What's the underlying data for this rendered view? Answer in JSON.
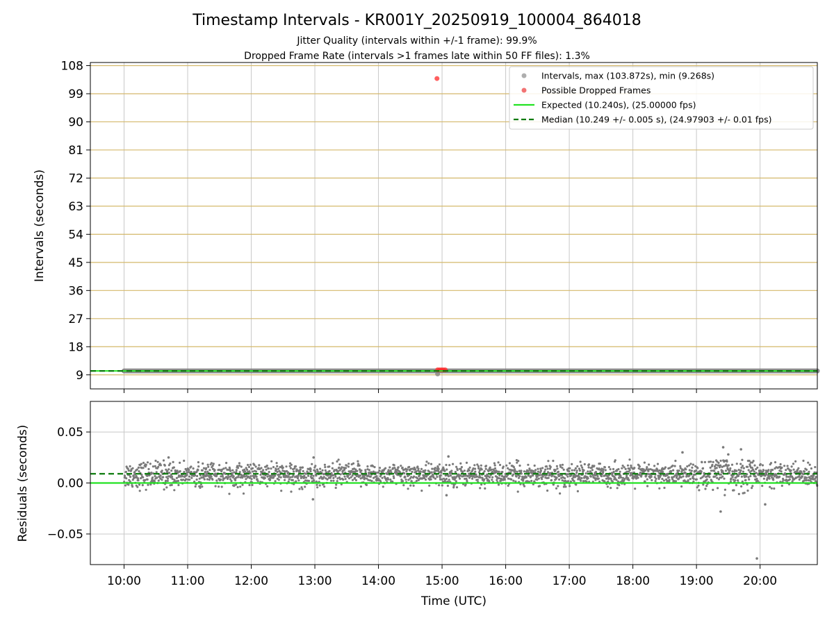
{
  "chart_data": {
    "type": "scatter",
    "title": "Timestamp Intervals - KR001Y_20250919_100004_864018",
    "subtitles": [
      "Jitter Quality (intervals within +/-1 frame): 99.9%",
      "Dropped Frame Rate (intervals >1 frames late within 50 FF files): 1.3%"
    ],
    "xlabel": "Time (UTC)",
    "x_ticks": [
      "10:00",
      "11:00",
      "12:00",
      "13:00",
      "14:00",
      "15:00",
      "16:00",
      "17:00",
      "18:00",
      "19:00",
      "20:00"
    ],
    "x_range_hours": [
      9.47,
      20.9
    ],
    "panels": [
      {
        "name": "intervals",
        "ylabel": "Intervals (seconds)",
        "ylim": [
          4.5,
          109
        ],
        "y_ticks": [
          9,
          18,
          27,
          36,
          45,
          54,
          63,
          72,
          81,
          90,
          99,
          108
        ],
        "grid_color": "#d4b86a",
        "interval_level": 10.249,
        "interval_max": 103.872,
        "interval_min": 9.268,
        "dropped_points": [
          {
            "t": 14.92,
            "v": 103.872
          },
          {
            "t": 14.93,
            "v": 10.6
          },
          {
            "t": 14.96,
            "v": 10.6
          },
          {
            "t": 14.99,
            "v": 10.6
          },
          {
            "t": 15.02,
            "v": 10.6
          },
          {
            "t": 15.05,
            "v": 10.6
          }
        ],
        "expected": 10.24,
        "median": 10.249
      },
      {
        "name": "residuals",
        "ylabel": "Residuals (seconds)",
        "ylim": [
          -0.08,
          0.08
        ],
        "y_ticks": [
          0.05,
          0.0,
          -0.05
        ],
        "y_tick_labels": [
          "0.05",
          "0.00",
          "−0.05"
        ],
        "expected_residual": 0.0,
        "median_residual": 0.009,
        "outliers": [
          {
            "t": 19.95,
            "v": -0.074
          },
          {
            "t": 20.08,
            "v": -0.021
          },
          {
            "t": 19.38,
            "v": -0.028
          },
          {
            "t": 19.42,
            "v": 0.035
          },
          {
            "t": 19.7,
            "v": 0.033
          },
          {
            "t": 18.78,
            "v": 0.03
          },
          {
            "t": 12.97,
            "v": -0.016
          },
          {
            "t": 12.98,
            "v": 0.025
          },
          {
            "t": 10.7,
            "v": 0.025
          },
          {
            "t": 15.1,
            "v": 0.026
          },
          {
            "t": 15.07,
            "v": -0.012
          },
          {
            "t": 19.5,
            "v": 0.028
          }
        ]
      }
    ],
    "legend": {
      "placement": "top-right",
      "entries": [
        {
          "label": "Intervals, max (103.872s), min (9.268s)",
          "marker": "dot",
          "color": "#a0a0a0"
        },
        {
          "label": "Possible Dropped Frames",
          "marker": "dot",
          "color": "#f05a5a"
        },
        {
          "label": "Expected (10.240s), (25.00000 fps)",
          "marker": "line",
          "color": "#22e222"
        },
        {
          "label": "Median (10.249 +/- 0.005 s), (24.97903 +/- 0.01 fps)",
          "marker": "dashed",
          "color": "#0b7a0b"
        }
      ]
    },
    "colors": {
      "intervals": "#7a7a7a",
      "dropped": "#ff2a2a",
      "expected": "#22e222",
      "median": "#0b7a0b",
      "grid": "#c8c8c8"
    }
  }
}
